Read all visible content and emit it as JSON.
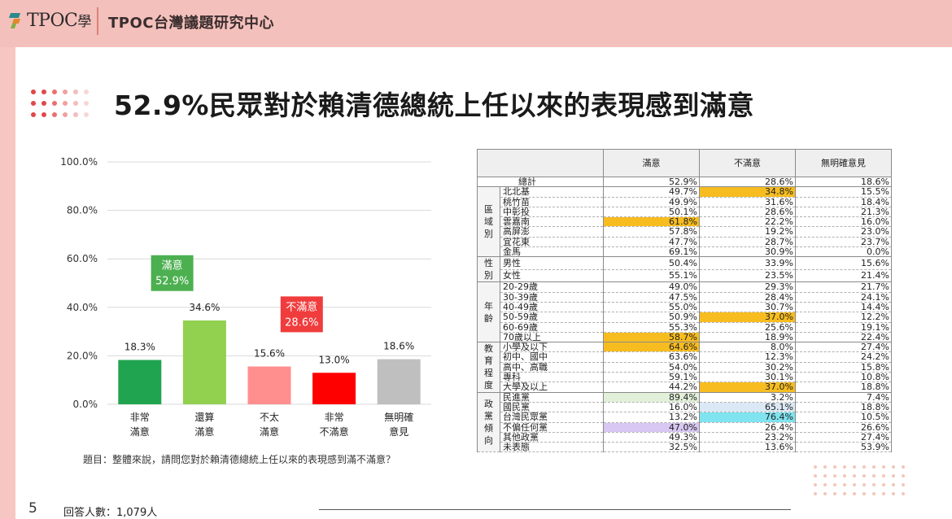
{
  "header": {
    "logo_text": "TPOC",
    "logo_char": "學",
    "org_name": "TPOC台灣議題研究中心"
  },
  "title": "52.9%民眾對於賴清德總統上任以來的表現感到滿意",
  "chart_data": {
    "type": "bar",
    "categories": [
      [
        "非常",
        "滿意"
      ],
      [
        "還算",
        "滿意"
      ],
      [
        "不太",
        "滿意"
      ],
      [
        "非常",
        "不滿意"
      ],
      [
        "無明確",
        "意見"
      ]
    ],
    "values": [
      18.3,
      34.6,
      15.6,
      13.0,
      18.6
    ],
    "value_labels": [
      "18.3%",
      "34.6%",
      "15.6%",
      "13.0%",
      "18.6%"
    ],
    "colors": [
      "#21a44f",
      "#92d050",
      "#ff8f8f",
      "#ff0000",
      "#bfbfbf"
    ],
    "ylim": [
      0,
      100
    ],
    "yticks": [
      "0.0%",
      "20.0%",
      "40.0%",
      "60.0%",
      "80.0%",
      "100.0%"
    ],
    "grid": true,
    "annotations": [
      {
        "label": "滿意",
        "value": "52.9%",
        "color": "#4cb050"
      },
      {
        "label": "不滿意",
        "value": "28.6%",
        "color": "#f03c3c"
      }
    ]
  },
  "question": "題目：整體來說，請問您對於賴清德總統上任以來的表現感到滿不滿意？",
  "page_number": "5",
  "respondents": "回答人數：1,079人",
  "table": {
    "columns": [
      "滿意",
      "不滿意",
      "無明確意見"
    ],
    "total": {
      "label": "總計",
      "values": [
        "52.9%",
        "28.6%",
        "18.6%"
      ]
    },
    "groups": [
      {
        "name": "區域別",
        "rows": [
          {
            "label": "北北基",
            "values": [
              "49.7%",
              "34.8%",
              "15.5%"
            ],
            "hl": [
              "",
              "orange",
              ""
            ]
          },
          {
            "label": "桃竹苗",
            "values": [
              "49.9%",
              "31.6%",
              "18.4%"
            ],
            "hl": [
              "",
              "",
              ""
            ]
          },
          {
            "label": "中彰投",
            "values": [
              "50.1%",
              "28.6%",
              "21.3%"
            ],
            "hl": [
              "",
              "",
              ""
            ]
          },
          {
            "label": "雲嘉南",
            "values": [
              "61.8%",
              "22.2%",
              "16.0%"
            ],
            "hl": [
              "orange",
              "",
              ""
            ]
          },
          {
            "label": "高屏澎",
            "values": [
              "57.8%",
              "19.2%",
              "23.0%"
            ],
            "hl": [
              "",
              "",
              ""
            ]
          },
          {
            "label": "宜花東",
            "values": [
              "47.7%",
              "28.7%",
              "23.7%"
            ],
            "hl": [
              "",
              "",
              ""
            ]
          },
          {
            "label": "金馬",
            "values": [
              "69.1%",
              "30.9%",
              "0.0%"
            ],
            "hl": [
              "",
              "",
              ""
            ]
          }
        ]
      },
      {
        "name": "性別",
        "rows": [
          {
            "label": "男性",
            "values": [
              "50.4%",
              "33.9%",
              "15.6%"
            ],
            "hl": [
              "",
              "",
              ""
            ]
          },
          {
            "label": "女性",
            "values": [
              "55.1%",
              "23.5%",
              "21.4%"
            ],
            "hl": [
              "",
              "",
              ""
            ]
          }
        ]
      },
      {
        "name": "年齡",
        "rows": [
          {
            "label": "20-29歲",
            "values": [
              "49.0%",
              "29.3%",
              "21.7%"
            ],
            "hl": [
              "",
              "",
              ""
            ]
          },
          {
            "label": "30-39歲",
            "values": [
              "47.5%",
              "28.4%",
              "24.1%"
            ],
            "hl": [
              "",
              "",
              ""
            ]
          },
          {
            "label": "40-49歲",
            "values": [
              "55.0%",
              "30.7%",
              "14.4%"
            ],
            "hl": [
              "",
              "",
              ""
            ]
          },
          {
            "label": "50-59歲",
            "values": [
              "50.9%",
              "37.0%",
              "12.2%"
            ],
            "hl": [
              "",
              "orange",
              ""
            ]
          },
          {
            "label": "60-69歲",
            "values": [
              "55.3%",
              "25.6%",
              "19.1%"
            ],
            "hl": [
              "",
              "",
              ""
            ]
          },
          {
            "label": "70歲以上",
            "values": [
              "58.7%",
              "18.9%",
              "22.4%"
            ],
            "hl": [
              "orange",
              "",
              ""
            ]
          }
        ]
      },
      {
        "name": "教育程度",
        "rows": [
          {
            "label": "小學及以下",
            "values": [
              "64.6%",
              "8.0%",
              "27.4%"
            ],
            "hl": [
              "orange",
              "",
              ""
            ]
          },
          {
            "label": "初中、國中",
            "values": [
              "63.6%",
              "12.3%",
              "24.2%"
            ],
            "hl": [
              "",
              "",
              ""
            ]
          },
          {
            "label": "高中、高職",
            "values": [
              "54.0%",
              "30.2%",
              "15.8%"
            ],
            "hl": [
              "",
              "",
              ""
            ]
          },
          {
            "label": "專科",
            "values": [
              "59.1%",
              "30.1%",
              "10.8%"
            ],
            "hl": [
              "",
              "",
              ""
            ]
          },
          {
            "label": "大學及以上",
            "values": [
              "44.2%",
              "37.0%",
              "18.8%"
            ],
            "hl": [
              "",
              "orange",
              ""
            ]
          }
        ]
      },
      {
        "name": "政黨傾向",
        "rows": [
          {
            "label": "民進黨",
            "values": [
              "89.4%",
              "3.2%",
              "7.4%"
            ],
            "hl": [
              "green",
              "",
              ""
            ]
          },
          {
            "label": "國民黨",
            "values": [
              "16.0%",
              "65.1%",
              "18.8%"
            ],
            "hl": [
              "",
              "blue",
              ""
            ]
          },
          {
            "label": "台灣民眾黨",
            "values": [
              "13.2%",
              "76.4%",
              "10.5%"
            ],
            "hl": [
              "",
              "cyan",
              ""
            ]
          },
          {
            "label": "不偏任何黨",
            "values": [
              "47.0%",
              "26.4%",
              "26.6%"
            ],
            "hl": [
              "purple",
              "",
              ""
            ]
          },
          {
            "label": "其他政黨",
            "values": [
              "49.3%",
              "23.2%",
              "27.4%"
            ],
            "hl": [
              "",
              "",
              ""
            ]
          },
          {
            "label": "未表態",
            "values": [
              "32.5%",
              "13.6%",
              "53.9%"
            ],
            "hl": [
              "",
              "",
              ""
            ]
          }
        ]
      }
    ]
  }
}
